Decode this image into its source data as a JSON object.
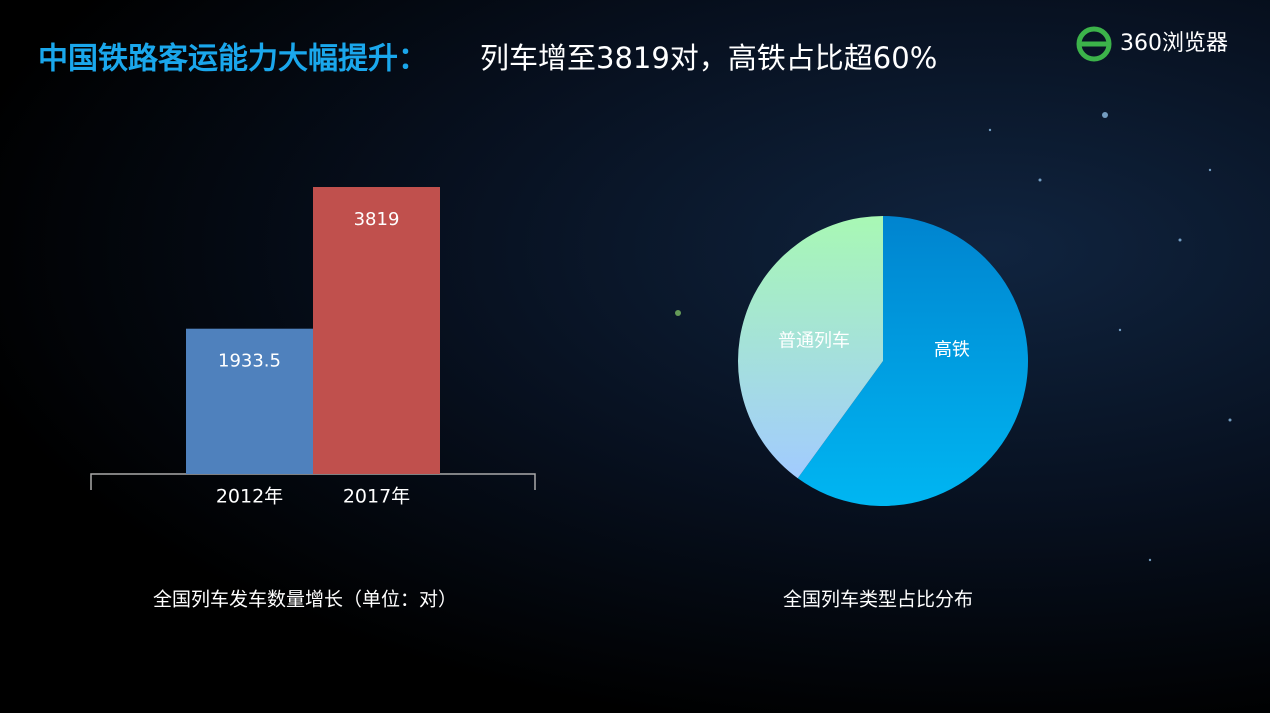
{
  "header": {
    "title_highlight": "中国铁路客运能力大幅提升：",
    "title_rest": "列车增至3819对，高铁占比超60%",
    "logo": "360浏览器"
  },
  "chart_data": [
    {
      "type": "bar",
      "title": "全国列车发车数量增长（单位：对）",
      "categories": [
        "2012年",
        "2017年"
      ],
      "values": [
        1933.5,
        3819
      ],
      "colors": [
        "#4f81bd",
        "#c0504d"
      ],
      "ylim": [
        0,
        4000
      ]
    },
    {
      "type": "pie",
      "title": "全国列车类型占比分布",
      "categories": [
        "高铁",
        "普通列车"
      ],
      "values": [
        60,
        40
      ],
      "colors": [
        [
          "#0084cf",
          "#00b6f2"
        ],
        [
          "#a8f8b4",
          "#a2cbff"
        ]
      ]
    }
  ]
}
